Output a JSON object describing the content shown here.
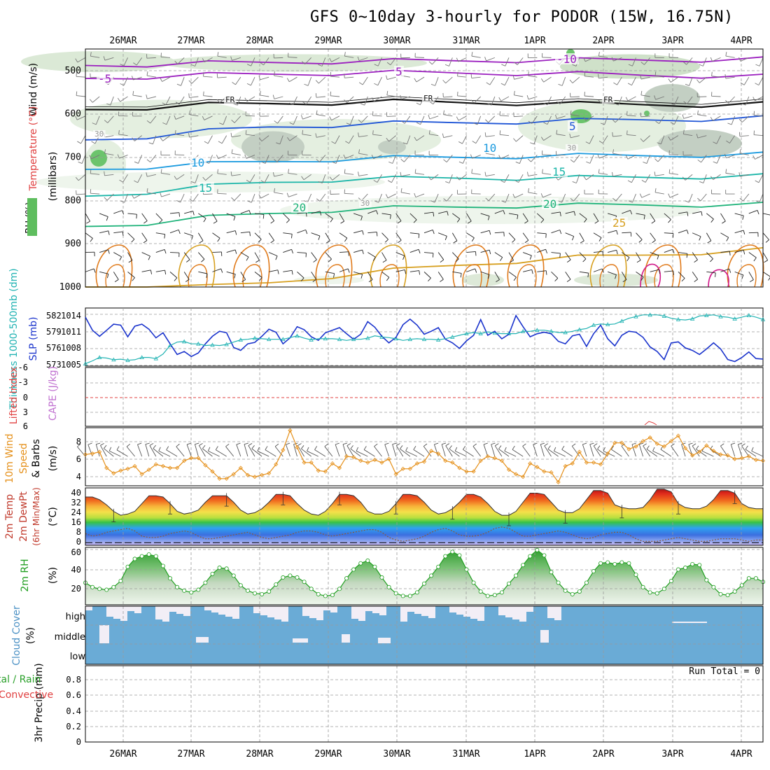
{
  "title": "GFS 0~10day 3-hourly for PODOR (15W, 16.75N)",
  "colors": {
    "slp": "#1a33cc",
    "thickness": "#22b3b3",
    "wind10": "#e5901a",
    "rh2m": "#1f9e1f",
    "cloud": "#6aabd6",
    "cloud_clear": "#f2eef6",
    "lifted_zero": "#e04040"
  },
  "chart_data": [
    {
      "id": "upper-air",
      "type": "contour",
      "ylabel_parts": [
        "Wind (m/s)",
        "Temperature (°C)",
        "RH (%)",
        "(millibars)"
      ],
      "yticks": [
        500,
        600,
        700,
        800,
        900,
        1000
      ],
      "ylim": [
        1000,
        450
      ],
      "x_dates": [
        "26MAR",
        "27MAR",
        "28MAR",
        "29MAR",
        "30MAR",
        "31MAR",
        "1APR",
        "2APR",
        "3APR",
        "4APR"
      ],
      "contour_labels": [
        {
          "text": "-10",
          "color": "#9b1fbf"
        },
        {
          "text": "-5",
          "color": "#9b1fbf"
        },
        {
          "text": "5",
          "color": "#9b1fbf"
        },
        {
          "text": "FR",
          "color": "#111111"
        },
        {
          "text": "FR",
          "color": "#111111"
        },
        {
          "text": "FR",
          "color": "#111111"
        },
        {
          "text": "5",
          "color": "#1f55d6"
        },
        {
          "text": "10",
          "color": "#1a9adf"
        },
        {
          "text": "10",
          "color": "#1a9adf"
        },
        {
          "text": "15",
          "color": "#1ab5a8"
        },
        {
          "text": "15",
          "color": "#1ab5a8"
        },
        {
          "text": "20",
          "color": "#1fb37a"
        },
        {
          "text": "20",
          "color": "#1fb37a"
        },
        {
          "text": "25",
          "color": "#d7a020"
        },
        {
          "text": "30",
          "color": "#999999"
        },
        {
          "text": "30",
          "color": "#999999"
        },
        {
          "text": "30",
          "color": "#999999"
        }
      ],
      "isotherms": [
        {
          "temp": -10,
          "color": "#9b1fbf",
          "p": [
            488,
            486,
            483,
            481,
            479,
            478,
            477,
            476,
            476,
            475,
            475,
            474
          ]
        },
        {
          "temp": -5,
          "color": "#9b1fbf",
          "p": [
            518,
            514,
            510,
            508,
            506,
            505,
            505,
            506,
            508,
            510,
            512,
            514
          ]
        },
        {
          "temp": 0,
          "color": "#111111",
          "p": [
            590,
            585,
            579,
            576,
            574,
            572,
            573,
            575,
            577,
            578,
            579,
            578
          ]
        },
        {
          "temp": 5,
          "color": "#1f55d6",
          "p": [
            660,
            652,
            640,
            630,
            626,
            622,
            620,
            618,
            616,
            613,
            612,
            610
          ]
        },
        {
          "temp": 10,
          "color": "#1a9adf",
          "p": [
            728,
            722,
            716,
            710,
            705,
            702,
            700,
            698,
            697,
            696,
            695,
            694
          ]
        },
        {
          "temp": 15,
          "color": "#1ab5a8",
          "p": [
            790,
            780,
            768,
            758,
            752,
            750,
            748,
            748,
            748,
            746,
            745,
            744
          ]
        },
        {
          "temp": 20,
          "color": "#1fb37a",
          "p": [
            860,
            852,
            840,
            830,
            822,
            818,
            815,
            812,
            812,
            810,
            810,
            810
          ]
        },
        {
          "temp": 25,
          "color": "#d7a020",
          "p": [
            1000,
            1000,
            1000,
            990,
            975,
            962,
            950,
            940,
            932,
            926,
            920,
            915
          ]
        }
      ]
    },
    {
      "id": "thickness-slp",
      "type": "line",
      "ylabel_left": "Thickness 1000-500mb (dm)",
      "ylabel_right": "SLP (mb)",
      "yticks_left": [
        "582",
        "579",
        "576",
        "573"
      ],
      "yticks_right": [
        "1014",
        "1011",
        "1008",
        "1005"
      ],
      "ylim_slp": [
        1004.5,
        1016
      ],
      "series": [
        {
          "name": "SLP",
          "values": [
            1014.2,
            1011.6,
            1010.4,
            1011.6,
            1012.8,
            1012.6,
            1010.3,
            1012.4,
            1012.8,
            1011.8,
            1010.1,
            1011.1,
            1008.9,
            1006.8,
            1007.4,
            1006.4,
            1007.1,
            1008.9,
            1010.4,
            1011.4,
            1011.1,
            1008.2,
            1007.6,
            1008.9,
            1009.2,
            1010.4,
            1011.8,
            1011.2,
            1008.9,
            1010.1,
            1012.3,
            1011.7,
            1010.3,
            1009.6,
            1011.1,
            1011.6,
            1012.1,
            1010.9,
            1009.8,
            1010.8,
            1013.3,
            1012.2,
            1010.4,
            1009.1,
            1010.2,
            1012.7,
            1013.8,
            1012.6,
            1010.8,
            1011.4,
            1012.1,
            1009.8,
            1009.1,
            1008.0,
            1009.5,
            1010.6,
            1013.7,
            1010.6,
            1011.4,
            1009.9,
            1010.8,
            1014.5,
            1012.3,
            1010.3,
            1010.9,
            1011.2,
            1010.9,
            1009.4,
            1008.9,
            1010.5,
            1010.8,
            1008.4,
            1010.9,
            1012.6,
            1009.9,
            1008.5,
            1010.6,
            1011.4,
            1011.2,
            1010.2,
            1008.3,
            1007.4,
            1005.8,
            1009.1,
            1009.3,
            1008.1,
            1007.6,
            1006.8,
            1007.9,
            1009.1,
            1007.9,
            1005.8,
            1005.4,
            1006.2,
            1007.3,
            1006.0,
            1005.9
          ]
        },
        {
          "name": "Thickness",
          "values": [
            573.3,
            573.8,
            574.4,
            574.3,
            574.0,
            574.1,
            573.9,
            574.0,
            574.4,
            574.4,
            574.2,
            575.0,
            576.5,
            577.1,
            577.2,
            576.8,
            576.8,
            576.5,
            576.6,
            576.5,
            576.7,
            577.1,
            577.5,
            577.6,
            577.8,
            577.7,
            577.6,
            577.6,
            577.6,
            577.9,
            578.2,
            577.8,
            577.5,
            577.7,
            577.7,
            577.7,
            577.6,
            577.4,
            577.6,
            577.6,
            577.8,
            578.2,
            578.0,
            577.9,
            577.7,
            577.4,
            577.6,
            577.7,
            577.6,
            577.6,
            577.5,
            577.7,
            578.0,
            578.3,
            578.6,
            578.8,
            578.6,
            578.9,
            578.7,
            578.6,
            578.6,
            578.6,
            579.0,
            579.0,
            579.2,
            579.2,
            579.0,
            578.8,
            578.8,
            579.0,
            579.3,
            579.5,
            580.1,
            580.3,
            580.2,
            580.3,
            580.8,
            581.3,
            581.6,
            581.9,
            581.9,
            581.9,
            581.7,
            581.3,
            581.1,
            581.0,
            581.2,
            581.7,
            581.8,
            581.9,
            581.6,
            581.5,
            581.2,
            581.5,
            581.8,
            581.5,
            581.1
          ]
        }
      ]
    },
    {
      "id": "lifted-cape",
      "type": "line",
      "ylabel_left": "Lifted Index",
      "ylabel_right": "CAPE (J/kg)",
      "yticks": [
        "-6",
        "-3",
        "0",
        "3",
        "6"
      ],
      "ylim": [
        -6,
        6
      ],
      "annotations": [
        {
          "text": "CAPE blip near 2APR/3APR",
          "value": "small"
        }
      ]
    },
    {
      "id": "wind10m",
      "type": "line",
      "ylabel": "10m Wind Speed & Barbs (m/s)",
      "yticks": [
        "8",
        "6",
        "4"
      ],
      "ylim": [
        3,
        9.5
      ],
      "series": [
        {
          "name": "10m Wind Speed",
          "values": [
            6.5,
            6.6,
            6.8,
            5.0,
            4.4,
            4.7,
            4.9,
            5.2,
            4.3,
            4.8,
            5.4,
            5.2,
            5.0,
            5.0,
            5.8,
            6.1,
            6.1,
            5.3,
            4.6,
            3.8,
            3.8,
            4.3,
            5.0,
            4.2,
            4.0,
            4.2,
            4.4,
            5.4,
            7.0,
            9.2,
            7.3,
            5.6,
            5.6,
            4.7,
            4.6,
            5.5,
            5.0,
            6.3,
            6.2,
            5.8,
            5.6,
            5.9,
            5.6,
            6.0,
            4.3,
            4.9,
            4.9,
            5.5,
            5.7,
            6.9,
            6.6,
            5.8,
            5.6,
            5.0,
            4.6,
            4.6,
            5.8,
            6.3,
            6.1,
            5.8,
            4.8,
            4.3,
            4.0,
            5.5,
            5.1,
            4.6,
            4.5,
            3.4,
            5.2,
            5.5,
            6.8,
            5.6,
            5.6,
            5.4,
            6.6,
            7.8,
            7.8,
            7.1,
            7.4,
            8.0,
            8.4,
            7.7,
            7.4,
            8.0,
            8.6,
            7.2,
            6.4,
            6.8,
            7.5,
            6.9,
            6.5,
            6.4,
            6.0,
            6.1,
            6.3,
            5.9,
            5.8
          ]
        }
      ]
    },
    {
      "id": "temp2m",
      "type": "area",
      "ylabel": "2m Temp 2m DewPt (6hr Min/Max) (°C)",
      "yticks": [
        "40",
        "32",
        "24",
        "16",
        "8",
        "0"
      ],
      "ylim": [
        -2,
        42
      ],
      "series": [
        {
          "name": "2m Temp",
          "values": [
            35,
            35,
            33,
            29,
            24,
            21,
            22,
            24,
            30,
            36,
            36,
            35,
            30,
            24,
            22,
            23,
            25,
            31,
            36,
            36,
            36,
            31,
            25,
            22,
            23,
            26,
            31,
            37,
            37,
            36,
            30,
            25,
            22,
            21,
            24,
            30,
            37,
            37,
            36,
            31,
            24,
            22,
            22,
            24,
            30,
            37,
            37,
            36,
            31,
            25,
            22,
            23,
            26,
            31,
            37,
            37,
            35,
            30,
            24,
            21,
            21,
            24,
            31,
            38,
            38,
            37,
            31,
            25,
            23,
            23,
            26,
            33,
            40,
            40,
            38,
            29,
            27,
            26,
            26,
            27,
            33,
            41,
            41,
            39,
            30,
            27,
            26,
            26,
            28,
            33,
            40,
            40,
            38,
            30,
            27,
            26,
            26
          ]
        },
        {
          "name": "2m DewPt",
          "values": [
            7,
            5,
            6,
            8,
            9,
            10,
            11,
            9,
            5,
            4,
            4,
            5,
            7,
            8,
            9,
            8,
            5,
            3,
            3,
            4,
            5,
            6,
            7,
            8,
            6,
            4,
            3,
            4,
            5,
            6,
            8,
            9,
            9,
            8,
            6,
            5,
            6,
            7,
            8,
            9,
            10,
            10,
            8,
            4,
            2,
            1,
            2,
            3,
            5,
            8,
            10,
            11,
            9,
            6,
            5,
            5,
            6,
            8,
            11,
            12,
            11,
            8,
            5,
            5,
            6,
            7,
            8,
            9,
            8,
            6,
            4,
            3,
            4,
            6,
            7,
            8,
            8,
            6,
            3,
            1,
            1,
            1,
            2,
            3,
            4,
            3,
            2,
            1,
            1,
            2,
            3,
            3,
            3,
            2,
            1,
            2,
            2
          ]
        }
      ]
    },
    {
      "id": "rh2m",
      "type": "area",
      "ylabel": "2m RH (%)",
      "yticks": [
        "60",
        "40",
        "20"
      ],
      "ylim": [
        0,
        65
      ],
      "series": [
        {
          "name": "2m RH",
          "values": [
            25,
            20,
            18,
            17,
            20,
            27,
            43,
            52,
            55,
            57,
            55,
            44,
            30,
            20,
            16,
            14,
            17,
            25,
            35,
            42,
            41,
            33,
            22,
            16,
            13,
            12,
            15,
            23,
            31,
            33,
            31,
            26,
            18,
            12,
            10,
            11,
            18,
            30,
            40,
            47,
            50,
            43,
            31,
            20,
            13,
            10,
            10,
            14,
            24,
            33,
            43,
            55,
            60,
            56,
            40,
            25,
            15,
            10,
            11,
            14,
            24,
            33,
            45,
            55,
            62,
            56,
            37,
            25,
            16,
            12,
            15,
            25,
            38,
            47,
            48,
            46,
            48,
            47,
            34,
            20,
            14,
            13,
            18,
            27,
            40,
            42,
            46,
            45,
            28,
            20,
            12,
            11,
            15,
            22,
            30,
            30,
            26
          ]
        }
      ]
    },
    {
      "id": "cloud",
      "type": "heatmap",
      "ylabel": "Cloud Cover (%)",
      "row_labels": [
        "high",
        "middle",
        "low"
      ]
    },
    {
      "id": "precip",
      "type": "bar",
      "ylabel_left": "Total / Rain Convective",
      "ylabel": "3hr Precip (mm)",
      "yticks": [
        "0.8",
        "0.6",
        "0.4",
        "0.2",
        "0"
      ],
      "ylim": [
        0,
        0.9
      ],
      "run_total": "Run Total = 0"
    }
  ]
}
